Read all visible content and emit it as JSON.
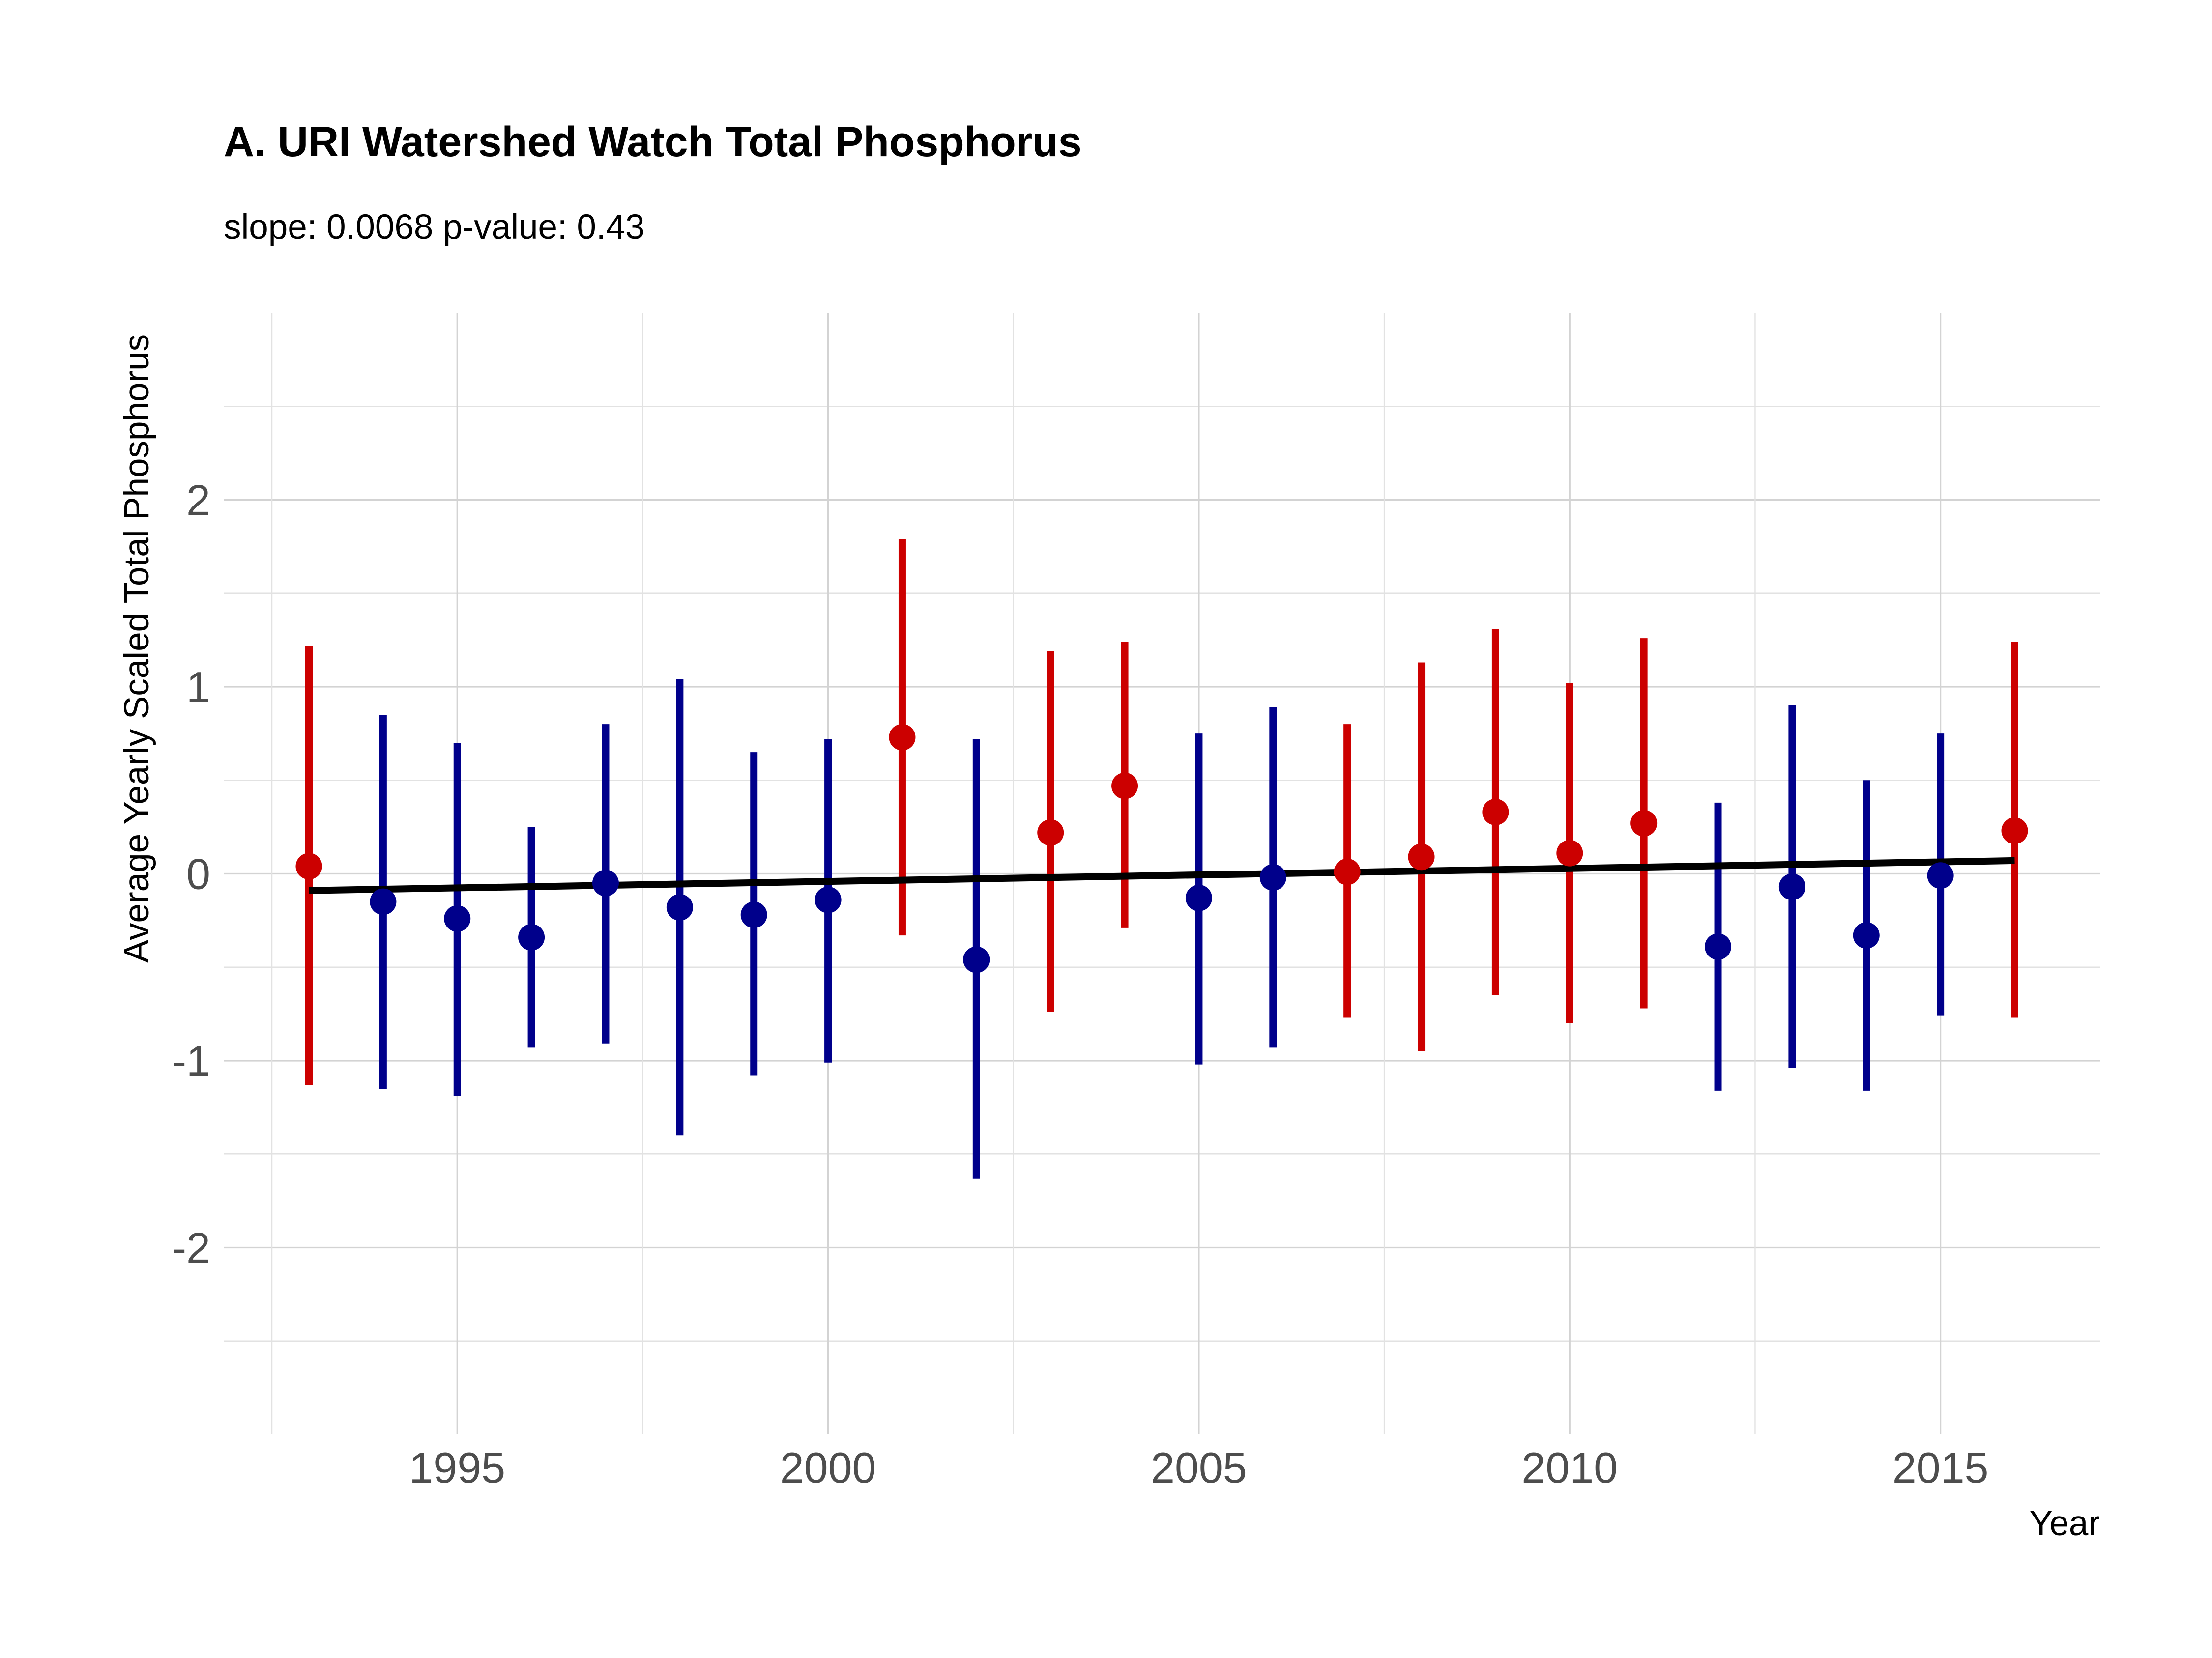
{
  "chart_data": {
    "type": "scatter",
    "title": "A. URI Watershed Watch Total Phosphorus",
    "subtitle": "slope: 0.0068 p-value: 0.43",
    "xlabel": "Year",
    "ylabel": "Average Yearly Scaled Total Phosphorus",
    "xlim": [
      1991.85,
      2017.15
    ],
    "ylim": [
      -3.0,
      3.0
    ],
    "x_ticks": [
      1995,
      2000,
      2005,
      2010,
      2015
    ],
    "x_tick_labels": [
      "1995",
      "2000",
      "2005",
      "2010",
      "2015"
    ],
    "y_ticks": [
      -2,
      -1,
      0,
      1,
      2
    ],
    "y_tick_labels": [
      "-2",
      "-1",
      "0",
      "1",
      "2"
    ],
    "grid": true,
    "legend": "none",
    "colors": {
      "above": "#cc0000",
      "below": "#00008b",
      "trend": "#000000"
    },
    "points": [
      {
        "year": 1993,
        "mean": 0.04,
        "lower": -1.13,
        "upper": 1.22,
        "color": "#cc0000"
      },
      {
        "year": 1994,
        "mean": -0.15,
        "lower": -1.15,
        "upper": 0.85,
        "color": "#00008b"
      },
      {
        "year": 1995,
        "mean": -0.24,
        "lower": -1.19,
        "upper": 0.7,
        "color": "#00008b"
      },
      {
        "year": 1996,
        "mean": -0.34,
        "lower": -0.93,
        "upper": 0.25,
        "color": "#00008b"
      },
      {
        "year": 1997,
        "mean": -0.05,
        "lower": -0.91,
        "upper": 0.8,
        "color": "#00008b"
      },
      {
        "year": 1998,
        "mean": -0.18,
        "lower": -1.4,
        "upper": 1.04,
        "color": "#00008b"
      },
      {
        "year": 1999,
        "mean": -0.22,
        "lower": -1.08,
        "upper": 0.65,
        "color": "#00008b"
      },
      {
        "year": 2000,
        "mean": -0.14,
        "lower": -1.01,
        "upper": 0.72,
        "color": "#00008b"
      },
      {
        "year": 2001,
        "mean": 0.73,
        "lower": -0.33,
        "upper": 1.79,
        "color": "#cc0000"
      },
      {
        "year": 2002,
        "mean": -0.46,
        "lower": -1.63,
        "upper": 0.72,
        "color": "#00008b"
      },
      {
        "year": 2003,
        "mean": 0.22,
        "lower": -0.74,
        "upper": 1.19,
        "color": "#cc0000"
      },
      {
        "year": 2004,
        "mean": 0.47,
        "lower": -0.29,
        "upper": 1.24,
        "color": "#cc0000"
      },
      {
        "year": 2005,
        "mean": -0.13,
        "lower": -1.02,
        "upper": 0.75,
        "color": "#00008b"
      },
      {
        "year": 2006,
        "mean": -0.02,
        "lower": -0.93,
        "upper": 0.89,
        "color": "#00008b"
      },
      {
        "year": 2007,
        "mean": 0.01,
        "lower": -0.77,
        "upper": 0.8,
        "color": "#cc0000"
      },
      {
        "year": 2008,
        "mean": 0.09,
        "lower": -0.95,
        "upper": 1.13,
        "color": "#cc0000"
      },
      {
        "year": 2009,
        "mean": 0.33,
        "lower": -0.65,
        "upper": 1.31,
        "color": "#cc0000"
      },
      {
        "year": 2010,
        "mean": 0.11,
        "lower": -0.8,
        "upper": 1.02,
        "color": "#cc0000"
      },
      {
        "year": 2011,
        "mean": 0.27,
        "lower": -0.72,
        "upper": 1.26,
        "color": "#cc0000"
      },
      {
        "year": 2012,
        "mean": -0.39,
        "lower": -1.16,
        "upper": 0.38,
        "color": "#00008b"
      },
      {
        "year": 2013,
        "mean": -0.07,
        "lower": -1.04,
        "upper": 0.9,
        "color": "#00008b"
      },
      {
        "year": 2014,
        "mean": -0.33,
        "lower": -1.16,
        "upper": 0.5,
        "color": "#00008b"
      },
      {
        "year": 2015,
        "mean": -0.01,
        "lower": -0.76,
        "upper": 0.75,
        "color": "#00008b"
      },
      {
        "year": 2016,
        "mean": 0.23,
        "lower": -0.77,
        "upper": 1.24,
        "color": "#cc0000"
      }
    ],
    "trend_line": {
      "x": [
        1993,
        2016
      ],
      "y": [
        -0.09,
        0.07
      ]
    }
  }
}
